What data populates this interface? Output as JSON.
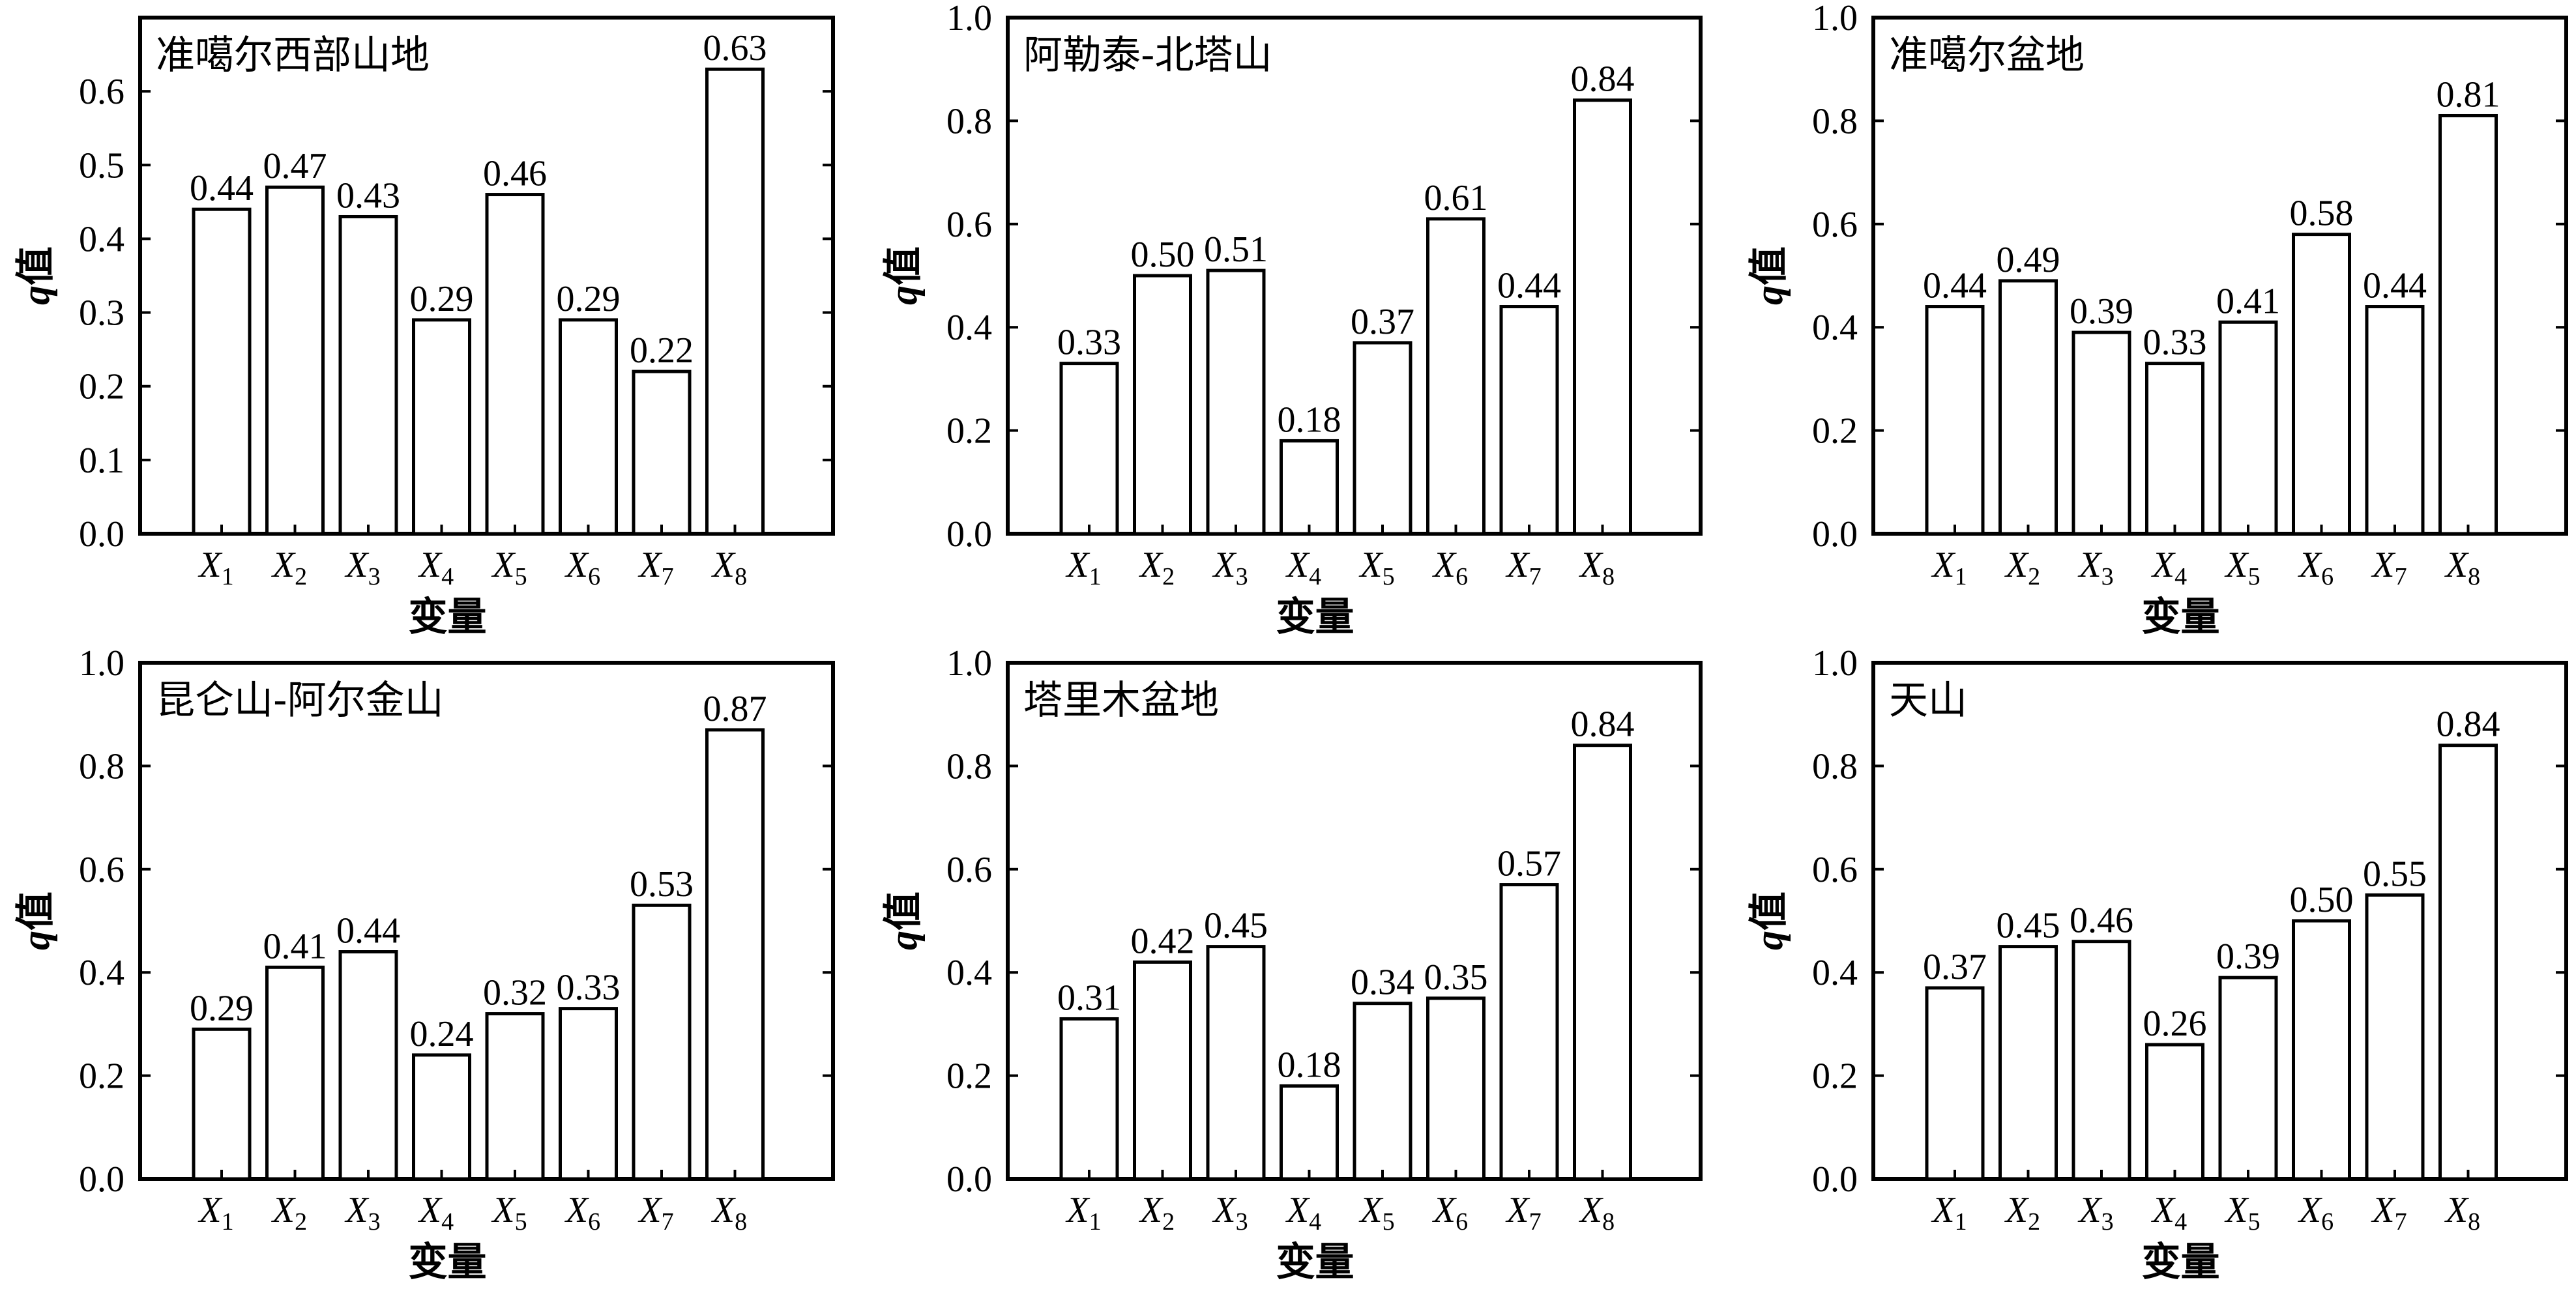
{
  "chart_data": [
    {
      "type": "bar",
      "title": "准噶尔西部山地",
      "xlabel": "变量",
      "ylabel_var": "q",
      "ylabel_text": "值",
      "categories": [
        {
          "letter": "X",
          "sub": "1"
        },
        {
          "letter": "X",
          "sub": "2"
        },
        {
          "letter": "X",
          "sub": "3"
        },
        {
          "letter": "X",
          "sub": "4"
        },
        {
          "letter": "X",
          "sub": "5"
        },
        {
          "letter": "X",
          "sub": "6"
        },
        {
          "letter": "X",
          "sub": "7"
        },
        {
          "letter": "X",
          "sub": "8"
        }
      ],
      "values": [
        0.44,
        0.47,
        0.43,
        0.29,
        0.46,
        0.29,
        0.22,
        0.63
      ],
      "value_labels": [
        "0.44",
        "0.47",
        "0.43",
        "0.29",
        "0.46",
        "0.29",
        "0.22",
        "0.63"
      ],
      "ylim": [
        0,
        0.7
      ],
      "yticks": [
        0,
        0.1,
        0.2,
        0.3,
        0.4,
        0.5,
        0.6
      ],
      "ytick_labels": [
        "0.0",
        "0.1",
        "0.2",
        "0.3",
        "0.4",
        "0.5",
        "0.6"
      ],
      "grid": false
    },
    {
      "type": "bar",
      "title": "阿勒泰-北塔山",
      "xlabel": "变量",
      "ylabel_var": "q",
      "ylabel_text": "值",
      "categories": [
        {
          "letter": "X",
          "sub": "1"
        },
        {
          "letter": "X",
          "sub": "2"
        },
        {
          "letter": "X",
          "sub": "3"
        },
        {
          "letter": "X",
          "sub": "4"
        },
        {
          "letter": "X",
          "sub": "5"
        },
        {
          "letter": "X",
          "sub": "6"
        },
        {
          "letter": "X",
          "sub": "7"
        },
        {
          "letter": "X",
          "sub": "8"
        }
      ],
      "values": [
        0.33,
        0.5,
        0.51,
        0.18,
        0.37,
        0.61,
        0.44,
        0.84
      ],
      "value_labels": [
        "0.33",
        "0.50",
        "0.51",
        "0.18",
        "0.37",
        "0.61",
        "0.44",
        "0.84"
      ],
      "ylim": [
        0,
        1.0
      ],
      "yticks": [
        0,
        0.2,
        0.4,
        0.6,
        0.8,
        1.0
      ],
      "ytick_labels": [
        "0.0",
        "0.2",
        "0.4",
        "0.6",
        "0.8",
        "1.0"
      ],
      "grid": false
    },
    {
      "type": "bar",
      "title": "准噶尔盆地",
      "xlabel": "变量",
      "ylabel_var": "q",
      "ylabel_text": "值",
      "categories": [
        {
          "letter": "X",
          "sub": "1"
        },
        {
          "letter": "X",
          "sub": "2"
        },
        {
          "letter": "X",
          "sub": "3"
        },
        {
          "letter": "X",
          "sub": "4"
        },
        {
          "letter": "X",
          "sub": "5"
        },
        {
          "letter": "X",
          "sub": "6"
        },
        {
          "letter": "X",
          "sub": "7"
        },
        {
          "letter": "X",
          "sub": "8"
        }
      ],
      "values": [
        0.44,
        0.49,
        0.39,
        0.33,
        0.41,
        0.58,
        0.44,
        0.81
      ],
      "value_labels": [
        "0.44",
        "0.49",
        "0.39",
        "0.33",
        "0.41",
        "0.58",
        "0.44",
        "0.81"
      ],
      "ylim": [
        0,
        1.0
      ],
      "yticks": [
        0,
        0.2,
        0.4,
        0.6,
        0.8,
        1.0
      ],
      "ytick_labels": [
        "0.0",
        "0.2",
        "0.4",
        "0.6",
        "0.8",
        "1.0"
      ],
      "grid": false
    },
    {
      "type": "bar",
      "title": "昆仑山-阿尔金山",
      "xlabel": "变量",
      "ylabel_var": "q",
      "ylabel_text": "值",
      "categories": [
        {
          "letter": "X",
          "sub": "1"
        },
        {
          "letter": "X",
          "sub": "2"
        },
        {
          "letter": "X",
          "sub": "3"
        },
        {
          "letter": "X",
          "sub": "4"
        },
        {
          "letter": "X",
          "sub": "5"
        },
        {
          "letter": "X",
          "sub": "6"
        },
        {
          "letter": "X",
          "sub": "7"
        },
        {
          "letter": "X",
          "sub": "8"
        }
      ],
      "values": [
        0.29,
        0.41,
        0.44,
        0.24,
        0.32,
        0.33,
        0.53,
        0.87
      ],
      "value_labels": [
        "0.29",
        "0.41",
        "0.44",
        "0.24",
        "0.32",
        "0.33",
        "0.53",
        "0.87"
      ],
      "ylim": [
        0,
        1.0
      ],
      "yticks": [
        0,
        0.2,
        0.4,
        0.6,
        0.8,
        1.0
      ],
      "ytick_labels": [
        "0.0",
        "0.2",
        "0.4",
        "0.6",
        "0.8",
        "1.0"
      ],
      "grid": false
    },
    {
      "type": "bar",
      "title": "塔里木盆地",
      "xlabel": "变量",
      "ylabel_var": "q",
      "ylabel_text": "值",
      "categories": [
        {
          "letter": "X",
          "sub": "1"
        },
        {
          "letter": "X",
          "sub": "2"
        },
        {
          "letter": "X",
          "sub": "3"
        },
        {
          "letter": "X",
          "sub": "4"
        },
        {
          "letter": "X",
          "sub": "5"
        },
        {
          "letter": "X",
          "sub": "6"
        },
        {
          "letter": "X",
          "sub": "7"
        },
        {
          "letter": "X",
          "sub": "8"
        }
      ],
      "values": [
        0.31,
        0.42,
        0.45,
        0.18,
        0.34,
        0.35,
        0.57,
        0.84
      ],
      "value_labels": [
        "0.31",
        "0.42",
        "0.45",
        "0.18",
        "0.34",
        "0.35",
        "0.57",
        "0.84"
      ],
      "ylim": [
        0,
        1.0
      ],
      "yticks": [
        0,
        0.2,
        0.4,
        0.6,
        0.8,
        1.0
      ],
      "ytick_labels": [
        "0.0",
        "0.2",
        "0.4",
        "0.6",
        "0.8",
        "1.0"
      ],
      "grid": false
    },
    {
      "type": "bar",
      "title": "天山",
      "xlabel": "变量",
      "ylabel_var": "q",
      "ylabel_text": "值",
      "categories": [
        {
          "letter": "X",
          "sub": "1"
        },
        {
          "letter": "X",
          "sub": "2"
        },
        {
          "letter": "X",
          "sub": "3"
        },
        {
          "letter": "X",
          "sub": "4"
        },
        {
          "letter": "X",
          "sub": "5"
        },
        {
          "letter": "X",
          "sub": "6"
        },
        {
          "letter": "X",
          "sub": "7"
        },
        {
          "letter": "X",
          "sub": "8"
        }
      ],
      "values": [
        0.37,
        0.45,
        0.46,
        0.26,
        0.39,
        0.5,
        0.55,
        0.84
      ],
      "value_labels": [
        "0.37",
        "0.45",
        "0.46",
        "0.26",
        "0.39",
        "0.50",
        "0.55",
        "0.84"
      ],
      "ylim": [
        0,
        1.0
      ],
      "yticks": [
        0,
        0.2,
        0.4,
        0.6,
        0.8,
        1.0
      ],
      "ytick_labels": [
        "0.0",
        "0.2",
        "0.4",
        "0.6",
        "0.8",
        "1.0"
      ],
      "grid": false
    }
  ]
}
